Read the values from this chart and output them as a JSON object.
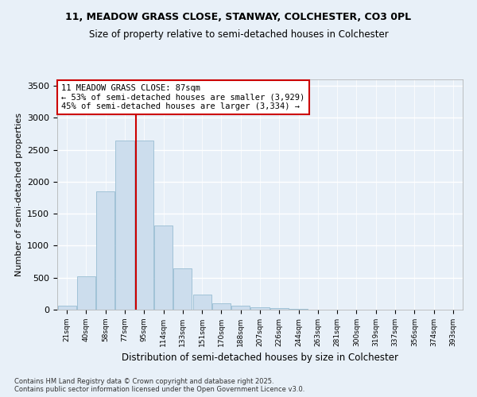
{
  "title_line1": "11, MEADOW GRASS CLOSE, STANWAY, COLCHESTER, CO3 0PL",
  "title_line2": "Size of property relative to semi-detached houses in Colchester",
  "xlabel": "Distribution of semi-detached houses by size in Colchester",
  "ylabel": "Number of semi-detached properties",
  "bar_color": "#ccdded",
  "bar_edge_color": "#8ab4cc",
  "background_color": "#e8f0f8",
  "grid_color": "#ffffff",
  "vline_color": "#cc0000",
  "annotation_text": "11 MEADOW GRASS CLOSE: 87sqm\n← 53% of semi-detached houses are smaller (3,929)\n45% of semi-detached houses are larger (3,334) →",
  "annotation_box_color": "#ffffff",
  "annotation_box_edge": "#cc0000",
  "footnote": "Contains HM Land Registry data © Crown copyright and database right 2025.\nContains public sector information licensed under the Open Government Licence v3.0.",
  "bin_labels": [
    "21sqm",
    "40sqm",
    "58sqm",
    "77sqm",
    "95sqm",
    "114sqm",
    "133sqm",
    "151sqm",
    "170sqm",
    "188sqm",
    "207sqm",
    "226sqm",
    "244sqm",
    "263sqm",
    "281sqm",
    "300sqm",
    "319sqm",
    "337sqm",
    "356sqm",
    "374sqm",
    "393sqm"
  ],
  "bar_heights": [
    60,
    520,
    1850,
    2650,
    2650,
    1310,
    640,
    240,
    100,
    60,
    40,
    25,
    10,
    5,
    3,
    2,
    1,
    0,
    0,
    0,
    0
  ],
  "ylim": [
    0,
    3600
  ],
  "yticks": [
    0,
    500,
    1000,
    1500,
    2000,
    2500,
    3000,
    3500
  ],
  "vline_x_index": 3.556
}
